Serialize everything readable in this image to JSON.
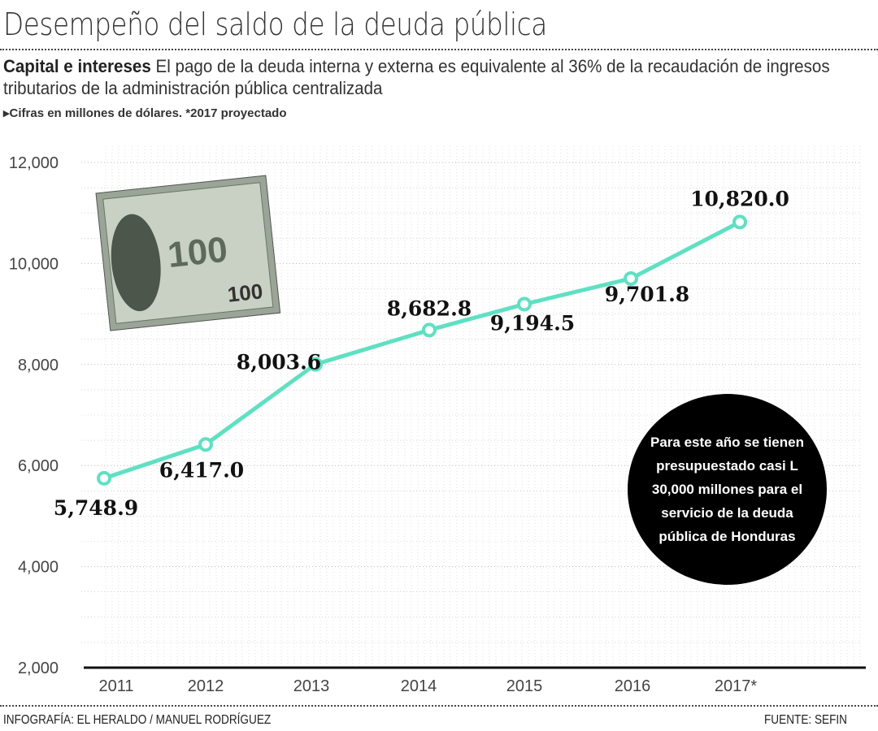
{
  "header": {
    "title": "Desempeño del saldo de la deuda pública",
    "subtitle_bold": "Capital e intereses",
    "subtitle_text": "El pago de la deuda interna y externa es equivalente al 36% de la recaudación de ingresos tributarios de la administración pública centralizada",
    "note": "Cifras en millones de dólares.  *2017 proyectado"
  },
  "callout": "Para este año se tienen presupuestado casi L 30,000 millones para el servicio de la deuda pública de Honduras",
  "footer": {
    "credit": "INFOGRAFÍA: EL HERALDO / MANUEL RODRÍGUEZ",
    "source": "FUENTE: SEFIN"
  },
  "colors": {
    "line": "#5fe0c2",
    "callout_bg": "#000000",
    "axis": "#111111"
  },
  "illustration": {
    "icon": "hundred-dollar-bill",
    "text": "100"
  },
  "chart_data": {
    "type": "line",
    "categories": [
      "2011",
      "2012",
      "2013",
      "2014",
      "2015",
      "2016",
      "2017*"
    ],
    "values": [
      5748.9,
      6417.0,
      8003.6,
      8682.8,
      9194.5,
      9701.8,
      10820.0
    ],
    "data_labels": [
      "5,748.9",
      "6,417.0",
      "8,003.6",
      "8,682.8",
      "9,194.5",
      "9,701.8",
      "10,820.0"
    ],
    "yticks": [
      "2,000",
      "4,000",
      "6,000",
      "8,000",
      "10,000",
      "12,000"
    ],
    "ylim": [
      2000,
      12000
    ],
    "grid": true,
    "legend": "none"
  }
}
